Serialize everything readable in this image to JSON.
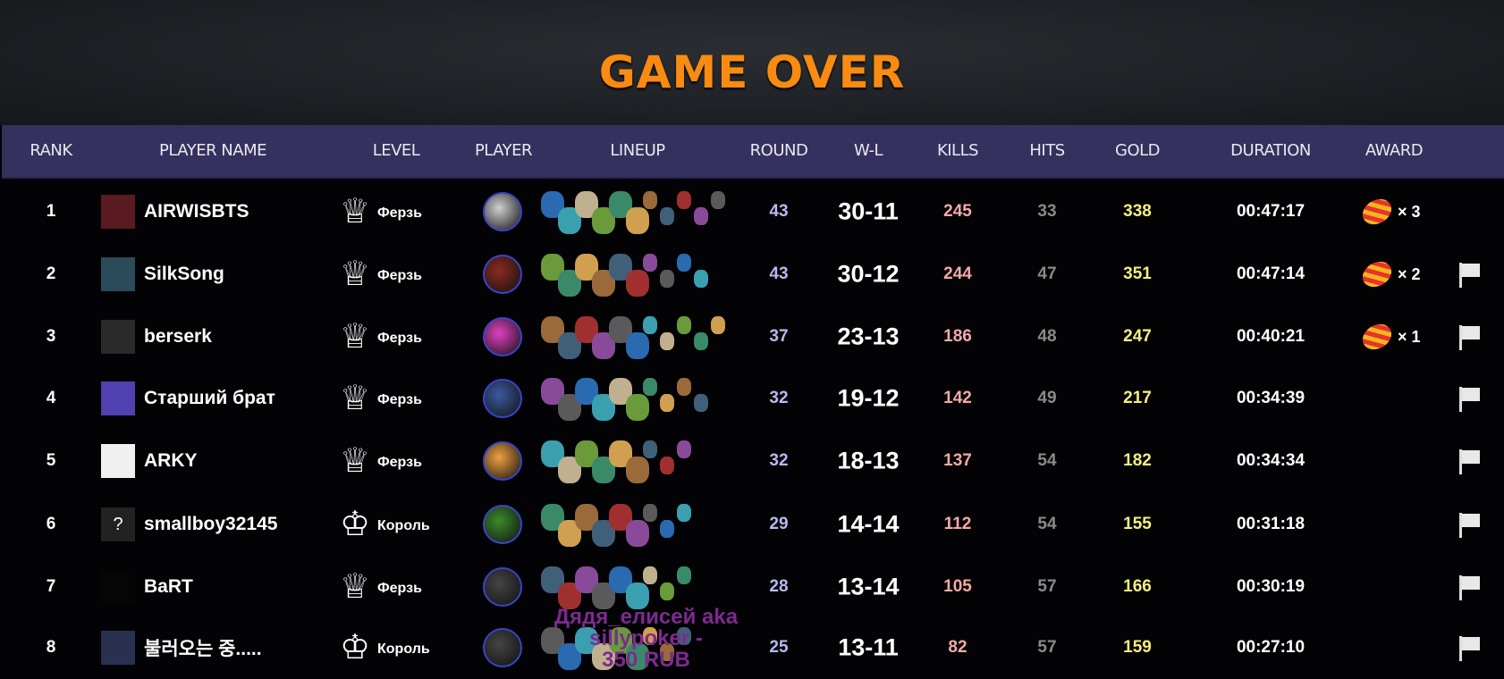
{
  "title": "GAME OVER",
  "headers": {
    "rank": "RANK",
    "player_name": "PLAYER NAME",
    "level": "LEVEL",
    "player": "PLAYER",
    "lineup": "LINEUP",
    "round": "ROUND",
    "wl": "W-L",
    "kills": "KILLS",
    "hits": "HITS",
    "gold": "GOLD",
    "duration": "DURATION",
    "award": "AWARD"
  },
  "rows": [
    {
      "rank": "1",
      "name": "AIRWISBTS",
      "level": "Ферзь",
      "crown": "queen",
      "round": "43",
      "wl": "30-11",
      "kills": "245",
      "hits": "33",
      "gold": "338",
      "duration": "00:47:17",
      "award": "× 3",
      "flag": false,
      "lineup_count": 11,
      "avatar": "#5a1a22",
      "player_color": "#cfcfcf"
    },
    {
      "rank": "2",
      "name": "SilkSong",
      "level": "Ферзь",
      "crown": "queen",
      "round": "43",
      "wl": "30-12",
      "kills": "244",
      "hits": "47",
      "gold": "351",
      "duration": "00:47:14",
      "award": "× 2",
      "flag": true,
      "lineup_count": 10,
      "avatar": "#2b4a5a",
      "player_color": "#8a2a20"
    },
    {
      "rank": "3",
      "name": "berserk",
      "level": "Ферзь",
      "crown": "queen",
      "round": "37",
      "wl": "23-13",
      "kills": "186",
      "hits": "48",
      "gold": "247",
      "duration": "00:40:21",
      "award": "× 1",
      "flag": true,
      "lineup_count": 11,
      "avatar": "#2a2a2a",
      "player_color": "#e040c0"
    },
    {
      "rank": "4",
      "name": "Старший брат",
      "level": "Ферзь",
      "crown": "queen",
      "round": "32",
      "wl": "19-12",
      "kills": "142",
      "hits": "49",
      "gold": "217",
      "duration": "00:34:39",
      "award": "",
      "flag": true,
      "lineup_count": 10,
      "avatar": "#5040b0",
      "player_color": "#3a5aa0"
    },
    {
      "rank": "5",
      "name": "ARKY",
      "level": "Ферзь",
      "crown": "queen",
      "round": "32",
      "wl": "18-13",
      "kills": "137",
      "hits": "54",
      "gold": "182",
      "duration": "00:34:34",
      "award": "",
      "flag": true,
      "lineup_count": 9,
      "avatar": "#f0f0f0",
      "player_color": "#f0a040"
    },
    {
      "rank": "6",
      "name": "smallboy32145",
      "level": "Король",
      "crown": "king",
      "round": "29",
      "wl": "14-14",
      "kills": "112",
      "hits": "54",
      "gold": "155",
      "duration": "00:31:18",
      "award": "",
      "flag": true,
      "lineup_count": 9,
      "avatar": "#222",
      "avatar_text": "?",
      "player_color": "#3a8a2a"
    },
    {
      "rank": "7",
      "name": "BaRT",
      "level": "Ферзь",
      "crown": "queen",
      "round": "28",
      "wl": "13-14",
      "kills": "105",
      "hits": "57",
      "gold": "166",
      "duration": "00:30:19",
      "award": "",
      "flag": true,
      "lineup_count": 9,
      "avatar": "#050505",
      "player_color": "#444"
    },
    {
      "rank": "8",
      "name": "불러오는 중.....",
      "level": "Король",
      "crown": "king",
      "round": "25",
      "wl": "13-11",
      "kills": "82",
      "hits": "57",
      "gold": "159",
      "duration": "00:27:10",
      "award": "",
      "flag": true,
      "lineup_count": 9,
      "avatar": "#2a3050",
      "player_color": "#444"
    }
  ],
  "overlay": {
    "line1": "Дядя_елисей aka sillypoker -",
    "line2": "350 RUB"
  },
  "colors": {
    "accent": "#f98b12",
    "header_bg": "#35305d",
    "round": "#b9b8ef",
    "kills": "#f3a9a5",
    "gold": "#f6ee7d",
    "hits": "#8a8a8a"
  }
}
